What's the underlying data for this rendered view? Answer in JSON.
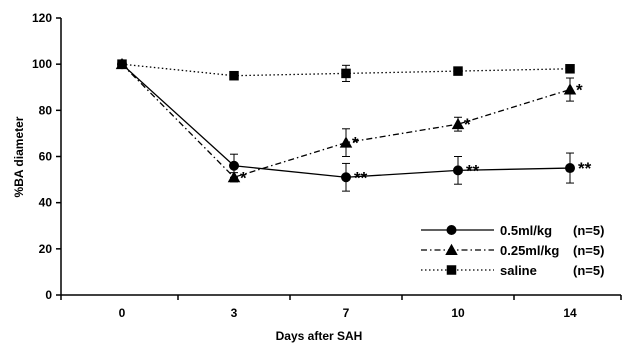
{
  "chart_data": {
    "type": "line",
    "xlabel": "Days after SAH",
    "ylabel": "%BA diameter",
    "x": [
      0,
      3,
      7,
      10,
      14
    ],
    "xlim": [
      -2,
      17
    ],
    "ylim": [
      0,
      120
    ],
    "yticks": [
      0,
      20,
      40,
      60,
      80,
      100,
      120
    ],
    "grid": false,
    "legend_position": "bottom-right",
    "series": [
      {
        "name": "0.5ml/kg",
        "n_label": "(n=5)",
        "marker": "circle",
        "line_style": "solid",
        "values": [
          100,
          56,
          51,
          54,
          55
        ],
        "errors": [
          0,
          5,
          6,
          6,
          6.5
        ],
        "significance": [
          "",
          "",
          "**",
          "**",
          "**"
        ]
      },
      {
        "name": "0.25ml/kg",
        "n_label": "(n=5)",
        "marker": "triangle",
        "line_style": "dash-dot",
        "values": [
          100,
          51,
          66,
          74,
          89
        ],
        "errors": [
          0,
          2,
          6,
          3,
          5
        ],
        "significance": [
          "",
          "*",
          "*",
          "*",
          "*"
        ]
      },
      {
        "name": "saline",
        "n_label": "(n=5)",
        "marker": "square",
        "line_style": "dotted",
        "values": [
          100,
          95,
          96,
          97,
          98
        ],
        "errors": [
          0,
          1.5,
          3.5,
          1.5,
          1
        ],
        "significance": [
          "",
          "",
          "",
          "",
          ""
        ]
      }
    ]
  }
}
